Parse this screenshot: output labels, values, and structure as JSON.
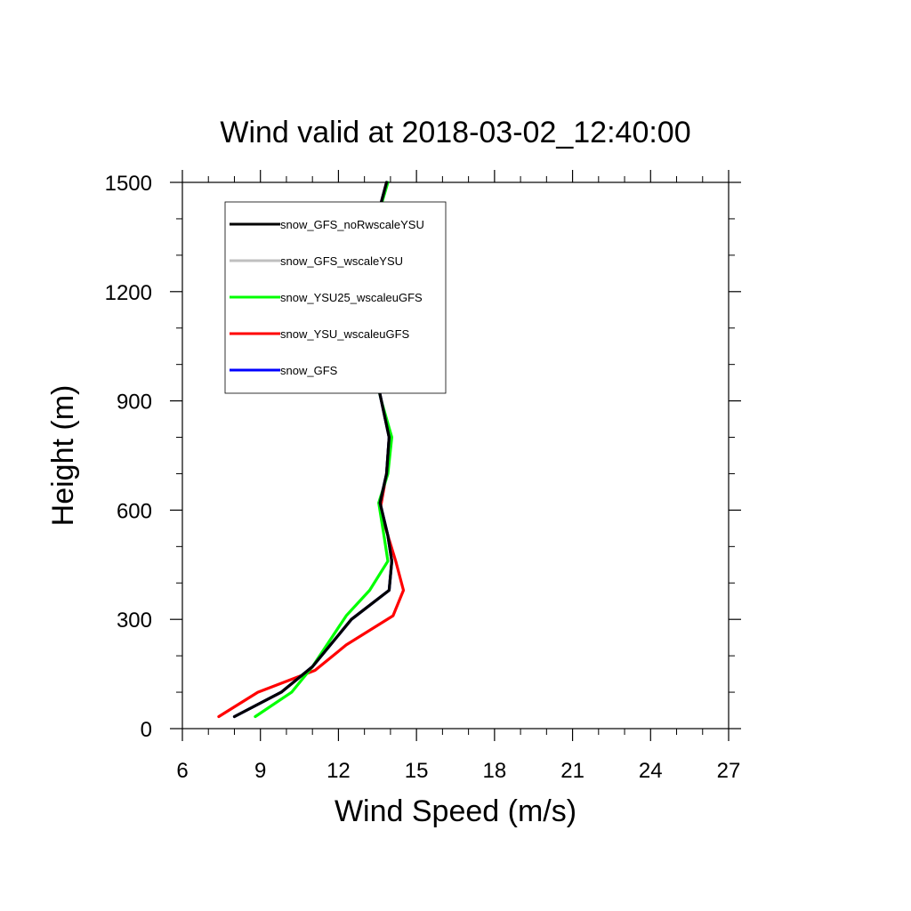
{
  "chart_data": {
    "type": "line",
    "title": "Wind valid at 2018-03-02_12:40:00",
    "xlabel": "Wind Speed (m/s)",
    "ylabel": "Height (m)",
    "xlim": [
      6,
      27
    ],
    "ylim": [
      0,
      1500
    ],
    "xticks": [
      6,
      9,
      12,
      15,
      18,
      21,
      24,
      27
    ],
    "yticks": [
      0,
      300,
      600,
      900,
      1200,
      1500
    ],
    "legend_position": "top-left",
    "series": [
      {
        "name": "snow_GFS_noRwscaleYSU",
        "color": "#000000",
        "x": [
          8.0,
          9.8,
          11.0,
          12.5,
          13.95,
          14.05,
          13.9,
          13.6,
          13.85,
          13.95,
          13.65,
          13.2,
          13.0,
          13.1,
          13.4,
          13.85
        ],
        "y": [
          33,
          100,
          170,
          300,
          380,
          460,
          530,
          620,
          700,
          800,
          900,
          1050,
          1200,
          1300,
          1380,
          1500
        ]
      },
      {
        "name": "snow_GFS_wscaleYSU",
        "color": "#bfbfbf",
        "x": [
          8.0,
          9.8,
          11.0,
          12.5,
          13.95,
          14.05,
          13.9,
          13.6,
          13.85,
          13.95,
          13.65,
          13.2,
          13.0,
          13.1,
          13.4,
          13.85
        ],
        "y": [
          33,
          100,
          170,
          300,
          380,
          460,
          530,
          620,
          700,
          800,
          900,
          1050,
          1200,
          1300,
          1380,
          1500
        ]
      },
      {
        "name": "snow_YSU25_wscaleuGFS",
        "color": "#00ff00",
        "x": [
          8.8,
          10.2,
          11.0,
          12.3,
          13.2,
          13.9,
          13.75,
          13.55,
          13.9,
          14.05,
          13.65,
          13.15,
          12.95,
          13.05,
          13.4,
          13.9
        ],
        "y": [
          33,
          100,
          170,
          310,
          380,
          460,
          530,
          620,
          700,
          800,
          900,
          1050,
          1200,
          1300,
          1380,
          1500
        ]
      },
      {
        "name": "snow_YSU_wscaleuGFS",
        "color": "#ff0000",
        "x": [
          7.4,
          8.9,
          11.1,
          12.3,
          14.1,
          14.5,
          14.2,
          13.6,
          13.85,
          13.95,
          13.65,
          13.2,
          13.0,
          13.1,
          13.4,
          13.85
        ],
        "y": [
          33,
          100,
          160,
          230,
          310,
          380,
          460,
          600,
          700,
          800,
          900,
          1050,
          1200,
          1300,
          1380,
          1500
        ]
      },
      {
        "name": "snow_GFS",
        "color": "#0000ff",
        "x": [
          8.0,
          9.8,
          11.0,
          12.5,
          13.95,
          14.05,
          13.9,
          13.6,
          13.85,
          13.95,
          13.65,
          13.2,
          13.0,
          13.1,
          13.4,
          13.85
        ],
        "y": [
          33,
          100,
          170,
          300,
          380,
          460,
          530,
          620,
          700,
          800,
          900,
          1050,
          1200,
          1300,
          1380,
          1500
        ]
      }
    ]
  }
}
